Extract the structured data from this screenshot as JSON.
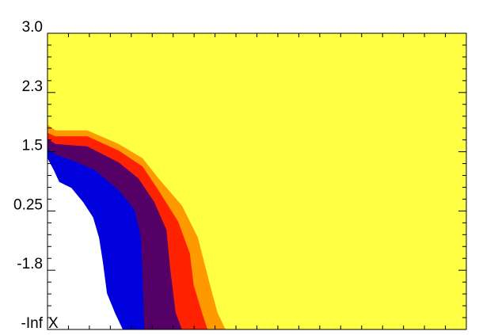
{
  "chart_data": {
    "type": "filled-contour",
    "x_label": "X",
    "xlim": [
      0,
      100
    ],
    "ylim": [
      0,
      5
    ],
    "yticks": [
      {
        "value": 5,
        "label": "3.0"
      },
      {
        "value": 4,
        "label": "2.3"
      },
      {
        "value": 3,
        "label": "1.5"
      },
      {
        "value": 2,
        "label": "0.25"
      },
      {
        "value": 1,
        "label": "-1.8"
      },
      {
        "value": 0,
        "label": "-Inf"
      }
    ],
    "background_color": "#ffff44",
    "series": [
      {
        "color": "#ff9900",
        "x": [
          0,
          1.9,
          9.5,
          17,
          22.7,
          26.5,
          32.1,
          35.9,
          38.8,
          40.6,
          42.5
        ],
        "values": [
          3.46,
          3.36,
          3.36,
          3.13,
          2.89,
          2.55,
          2.09,
          1.55,
          0.75,
          0.28,
          0
        ]
      },
      {
        "color": "#ff2200",
        "x": [
          0,
          1.9,
          9.5,
          17,
          22.7,
          26.5,
          31.2,
          34,
          34.9,
          36.9,
          38.2
        ],
        "values": [
          3.32,
          3.26,
          3.26,
          3.02,
          2.75,
          2.35,
          1.82,
          1.28,
          0.75,
          0.28,
          0
        ]
      },
      {
        "color": "#550066",
        "x": [
          0,
          1.9,
          9.5,
          17,
          21.7,
          25.5,
          28.4,
          29.3,
          30.6,
          32.1
        ],
        "values": [
          3.22,
          3.13,
          3.09,
          2.82,
          2.55,
          2.15,
          1.68,
          1.02,
          0.28,
          0
        ]
      },
      {
        "color": "#0000dd",
        "x": [
          0,
          1.9,
          5.7,
          11.3,
          17,
          20.8,
          22.3,
          22.7,
          23.1
        ],
        "values": [
          3.05,
          2.95,
          2.86,
          2.69,
          2.35,
          2.02,
          1.55,
          0.88,
          0
        ]
      },
      {
        "color": "#ffffff",
        "x": [
          0,
          1.5,
          2.8,
          5.7,
          8.5,
          10.9,
          12.3,
          13.2,
          14.2,
          16.1,
          17.96
        ],
        "values": [
          2.89,
          2.69,
          2.49,
          2.39,
          2.15,
          1.89,
          1.55,
          1.15,
          0.61,
          0.28,
          0
        ]
      }
    ]
  }
}
